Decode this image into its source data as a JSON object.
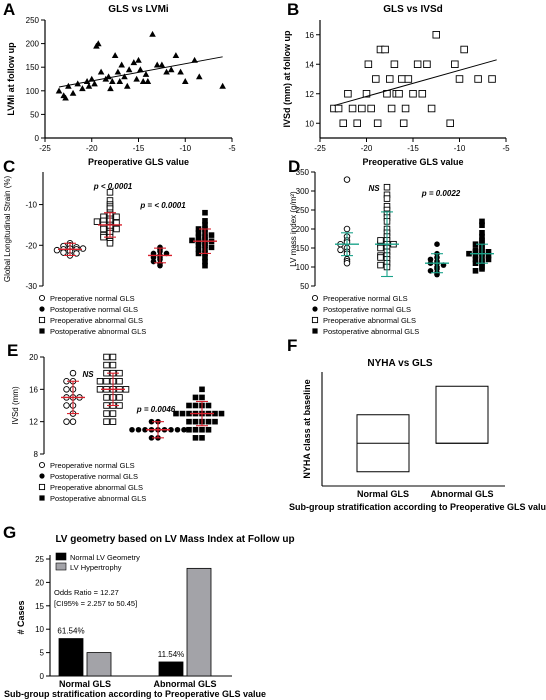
{
  "chart_data": [
    {
      "panel": "A",
      "type": "scatter",
      "title": "GLS vs LVMi",
      "xlabel": "Preoperative GLS value",
      "ylabel": "LVMi at follow up",
      "xlim": [
        -25,
        -5
      ],
      "ylim": [
        0,
        250
      ],
      "xticks": [
        -25,
        -20,
        -15,
        -10,
        -5
      ],
      "yticks": [
        0,
        50,
        100,
        150,
        200,
        250
      ],
      "marker": "filled-triangle",
      "x": [
        -23.5,
        -23,
        -22.8,
        -22.5,
        -22,
        -21.5,
        -21,
        -20.5,
        -20.3,
        -20,
        -19.7,
        -19.5,
        -19.3,
        -19,
        -18.5,
        -18.2,
        -18,
        -17.8,
        -17.5,
        -17.2,
        -17,
        -16.8,
        -16.5,
        -16.2,
        -16,
        -15.5,
        -15.2,
        -15,
        -14.8,
        -14.5,
        -14.2,
        -14,
        -13.5,
        -13,
        -12.5,
        -12,
        -11.5,
        -11,
        -10.5,
        -10,
        -9,
        -8.5,
        -6
      ],
      "y": [
        100,
        90,
        85,
        110,
        95,
        115,
        105,
        120,
        110,
        125,
        115,
        195,
        200,
        140,
        125,
        130,
        105,
        120,
        175,
        140,
        120,
        155,
        130,
        110,
        145,
        160,
        125,
        165,
        145,
        120,
        135,
        120,
        220,
        155,
        155,
        140,
        145,
        175,
        140,
        120,
        165,
        130,
        110
      ],
      "trendline": {
        "x": [
          -23.5,
          -6
        ],
        "y": [
          108,
          172
        ]
      }
    },
    {
      "panel": "B",
      "type": "scatter",
      "title": "GLS vs IVSd",
      "xlabel": "Preoperative GLS value",
      "ylabel": "IVSd (mm) at follow up",
      "xlim": [
        -25,
        -5
      ],
      "ylim": [
        9,
        17
      ],
      "xticks": [
        -25,
        -20,
        -15,
        -10,
        -5
      ],
      "yticks": [
        10,
        12,
        14,
        16
      ],
      "marker": "open-square",
      "x": [
        -23.5,
        -23,
        -22.5,
        -22,
        -21.5,
        -21,
        -20.5,
        -20,
        -19.8,
        -19.5,
        -19,
        -18.8,
        -18.5,
        -18,
        -17.8,
        -17.5,
        -17.3,
        -17,
        -16.8,
        -16.5,
        -16.2,
        -16,
        -15.8,
        -15.5,
        -15,
        -14.5,
        -14,
        -13.5,
        -13,
        -12.5,
        -11,
        -10.5,
        -10,
        -9.5,
        -8,
        -6.5
      ],
      "y": [
        11,
        11,
        10,
        12,
        11,
        10,
        11,
        12,
        14,
        11,
        13,
        10,
        15,
        15,
        12,
        13,
        11,
        14,
        12,
        12,
        13,
        10,
        11,
        13,
        12,
        14,
        12,
        14,
        11,
        16,
        10,
        14,
        13,
        15,
        13,
        13
      ],
      "trendline": {
        "x": [
          -23.5,
          -6
        ],
        "y": [
          11.2,
          14.3
        ]
      }
    },
    {
      "panel": "C",
      "type": "scatter",
      "subtype": "dot-plot",
      "ylabel": "Global Longitudinal Strain (%)",
      "ylim": [
        -30,
        -2
      ],
      "yticks": [
        -30,
        -20,
        -10
      ],
      "categories": [
        "Preoperative normal GLS",
        "Postoperative normal GLS",
        "Preoperative abnormal GLS",
        "Postoperative abnormal GLS"
      ],
      "series": [
        {
          "name": "Preoperative normal GLS",
          "marker": "open-circle",
          "mean": -21,
          "sd": 1.5,
          "values": [
            -19.5,
            -20,
            -20.2,
            -20.5,
            -20.8,
            -21,
            -21,
            -21.2,
            -21.5,
            -21.8,
            -22,
            -22.5,
            -20.8
          ]
        },
        {
          "name": "Preoperative abnormal GLS",
          "marker": "open-square",
          "mean": -15,
          "sd": 3,
          "values": [
            -7,
            -9,
            -10,
            -10.5,
            -11,
            -12,
            -12.5,
            -13,
            -13,
            -13.5,
            -14,
            -14,
            -14.5,
            -15,
            -15,
            -15.5,
            -16,
            -16,
            -16.5,
            -17,
            -17.5,
            -18,
            -18,
            -19,
            -19.5,
            -14.2
          ]
        },
        {
          "name": "Postoperative normal GLS",
          "marker": "filled-circle",
          "mean": -22.5,
          "sd": 1.8,
          "values": [
            -20.5,
            -21,
            -21.5,
            -22,
            -22,
            -22.5,
            -22.5,
            -23,
            -23,
            -23.5,
            -24,
            -24.5,
            -25
          ]
        },
        {
          "name": "Postoperative abnormal GLS",
          "marker": "filled-square",
          "mean": -19,
          "sd": 3,
          "values": [
            -12,
            -14,
            -15,
            -16,
            -16,
            -17,
            -17,
            -17.5,
            -18,
            -18,
            -18.5,
            -19,
            -19,
            -19.5,
            -20,
            -20,
            -20.5,
            -21,
            -21,
            -22,
            -22,
            -23,
            -24,
            -25,
            -18.8,
            -19.2
          ]
        }
      ],
      "annotations": [
        "p < 0.0001",
        "p = < 0.0001"
      ]
    },
    {
      "panel": "D",
      "type": "scatter",
      "subtype": "dot-plot",
      "ylabel": "LV mass index (g/m²)",
      "ylim": [
        50,
        350
      ],
      "yticks": [
        50,
        100,
        150,
        200,
        250,
        300,
        350
      ],
      "series": [
        {
          "name": "Preoperative normal GLS",
          "marker": "open-circle",
          "mean": 160,
          "sd": 30,
          "values": [
            330,
            200,
            180,
            170,
            165,
            160,
            150,
            145,
            140,
            135,
            120,
            115,
            110
          ]
        },
        {
          "name": "Preoperative abnormal GLS",
          "marker": "open-square",
          "mean": 160,
          "sd": 85,
          "values": [
            310,
            290,
            280,
            260,
            250,
            240,
            230,
            220,
            200,
            190,
            180,
            170,
            160,
            160,
            150,
            140,
            130,
            130,
            120,
            110,
            105,
            100,
            160,
            170,
            150,
            125
          ]
        },
        {
          "name": "Postoperative normal GLS",
          "marker": "filled-circle",
          "mean": 110,
          "sd": 25,
          "values": [
            160,
            135,
            125,
            120,
            115,
            110,
            110,
            105,
            100,
            95,
            90,
            85,
            80
          ]
        },
        {
          "name": "Postoperative abnormal GLS",
          "marker": "filled-square",
          "mean": 135,
          "sd": 25,
          "values": [
            220,
            210,
            190,
            180,
            170,
            165,
            160,
            155,
            150,
            145,
            140,
            140,
            135,
            130,
            130,
            125,
            120,
            120,
            115,
            110,
            110,
            100,
            95,
            90,
            135,
            140
          ]
        }
      ],
      "annotations": [
        "NS",
        "p = 0.0022"
      ]
    },
    {
      "panel": "E",
      "type": "scatter",
      "subtype": "dot-plot",
      "ylabel": "IVSd (mm)",
      "ylim": [
        8,
        20
      ],
      "yticks": [
        8,
        12,
        16,
        20
      ],
      "series": [
        {
          "name": "Preoperative normal GLS",
          "marker": "open-circle",
          "mean": 15,
          "sd": 2,
          "values": [
            18,
            17,
            17,
            16,
            16,
            15,
            15,
            15,
            14,
            14,
            13,
            12,
            12
          ]
        },
        {
          "name": "Preoperative abnormal GLS",
          "marker": "open-square",
          "mean": 16,
          "sd": 2,
          "values": [
            20,
            20,
            19,
            19,
            18,
            18,
            18,
            17,
            17,
            17,
            17,
            16,
            16,
            16,
            16,
            16,
            15,
            15,
            15,
            14,
            14,
            14,
            13,
            13,
            12,
            12
          ]
        },
        {
          "name": "Postoperative normal GLS",
          "marker": "filled-circle",
          "mean": 11,
          "sd": 1,
          "values": [
            12,
            12,
            11,
            11,
            11,
            11,
            11,
            11,
            11,
            11,
            11,
            10,
            10
          ]
        },
        {
          "name": "Postoperative abnormal GLS",
          "marker": "filled-square",
          "mean": 13,
          "sd": 1.5,
          "values": [
            16,
            15,
            15,
            14,
            14,
            14,
            14,
            13,
            13,
            13,
            13,
            13,
            13,
            13,
            12,
            12,
            12,
            12,
            12,
            11,
            11,
            11,
            11,
            10,
            10,
            13
          ]
        }
      ],
      "annotations": [
        "NS",
        "p = 0.0046"
      ]
    },
    {
      "panel": "F",
      "type": "box",
      "title": "NYHA vs GLS",
      "ylabel": "NYHA class at baseline",
      "xlabel": "Sub-group stratification according to Preoperative GLS value",
      "categories": [
        "Normal GLS",
        "Abnormal GLS"
      ],
      "boxes": [
        {
          "name": "Normal GLS",
          "min": 1,
          "q1": 1,
          "median": 2,
          "q3": 3,
          "max": 3
        },
        {
          "name": "Abnormal GLS",
          "min": 2,
          "q1": 2,
          "median": 2,
          "q3": 4,
          "max": 4
        }
      ]
    },
    {
      "panel": "G",
      "type": "bar",
      "title": "LV geometry based on LV Mass Index at Follow up",
      "ylabel": "# Cases",
      "xlabel": "Sub-group stratification according to Preoperative GLS value",
      "ylim": [
        0,
        25
      ],
      "yticks": [
        0,
        5,
        10,
        15,
        20,
        25
      ],
      "categories": [
        "Normal GLS",
        "Abnormal GLS"
      ],
      "series": [
        {
          "name": "Normal LV Geometry",
          "values": [
            8,
            3
          ],
          "color": "#000000"
        },
        {
          "name": "LV Hypertrophy",
          "values": [
            5,
            23
          ],
          "color": "#a3a3a8"
        }
      ],
      "bar_labels": [
        "61.54%",
        "11.54%"
      ],
      "annotations": [
        "Odds Ratio = 12.27",
        "[CI95% = 2.257 to 50.45]"
      ]
    }
  ]
}
